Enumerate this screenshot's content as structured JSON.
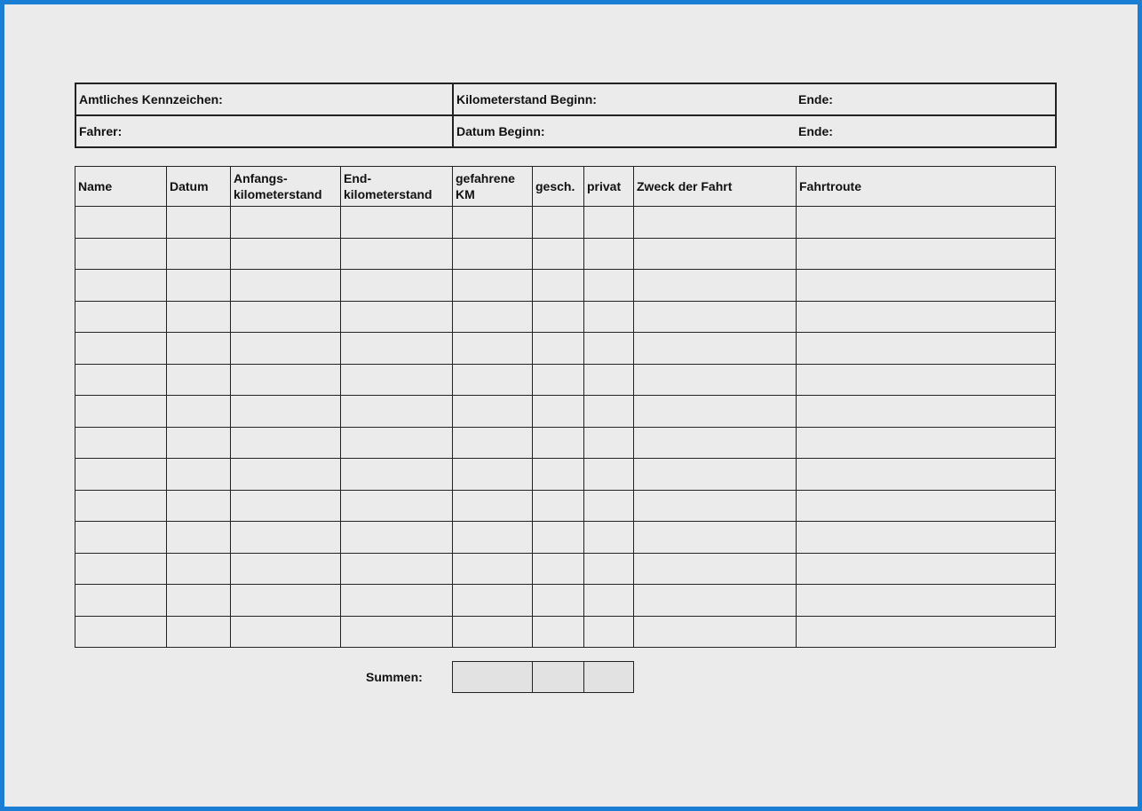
{
  "colors": {
    "frame": "#1a7fd4",
    "background": "#ebebeb"
  },
  "header": {
    "kennzeichen": "Amtliches Kennzeichen:",
    "km_beginn": "Kilometerstand Beginn:",
    "km_ende": "Ende:",
    "fahrer": "Fahrer:",
    "datum_beginn": "Datum Beginn:",
    "datum_ende": "Ende:"
  },
  "table": {
    "columns": [
      {
        "line1": "Name",
        "line2": ""
      },
      {
        "line1": "Datum",
        "line2": ""
      },
      {
        "line1": "Anfangs-",
        "line2": "kilometerstand"
      },
      {
        "line1": "End-",
        "line2": "kilometerstand"
      },
      {
        "line1": "gefahrene",
        "line2": "KM"
      },
      {
        "line1": "gesch.",
        "line2": ""
      },
      {
        "line1": "privat",
        "line2": ""
      },
      {
        "line1": "Zweck der Fahrt",
        "line2": ""
      },
      {
        "line1": "Fahrtroute",
        "line2": ""
      }
    ],
    "empty_rows": 14
  },
  "summen_label": "Summen:"
}
